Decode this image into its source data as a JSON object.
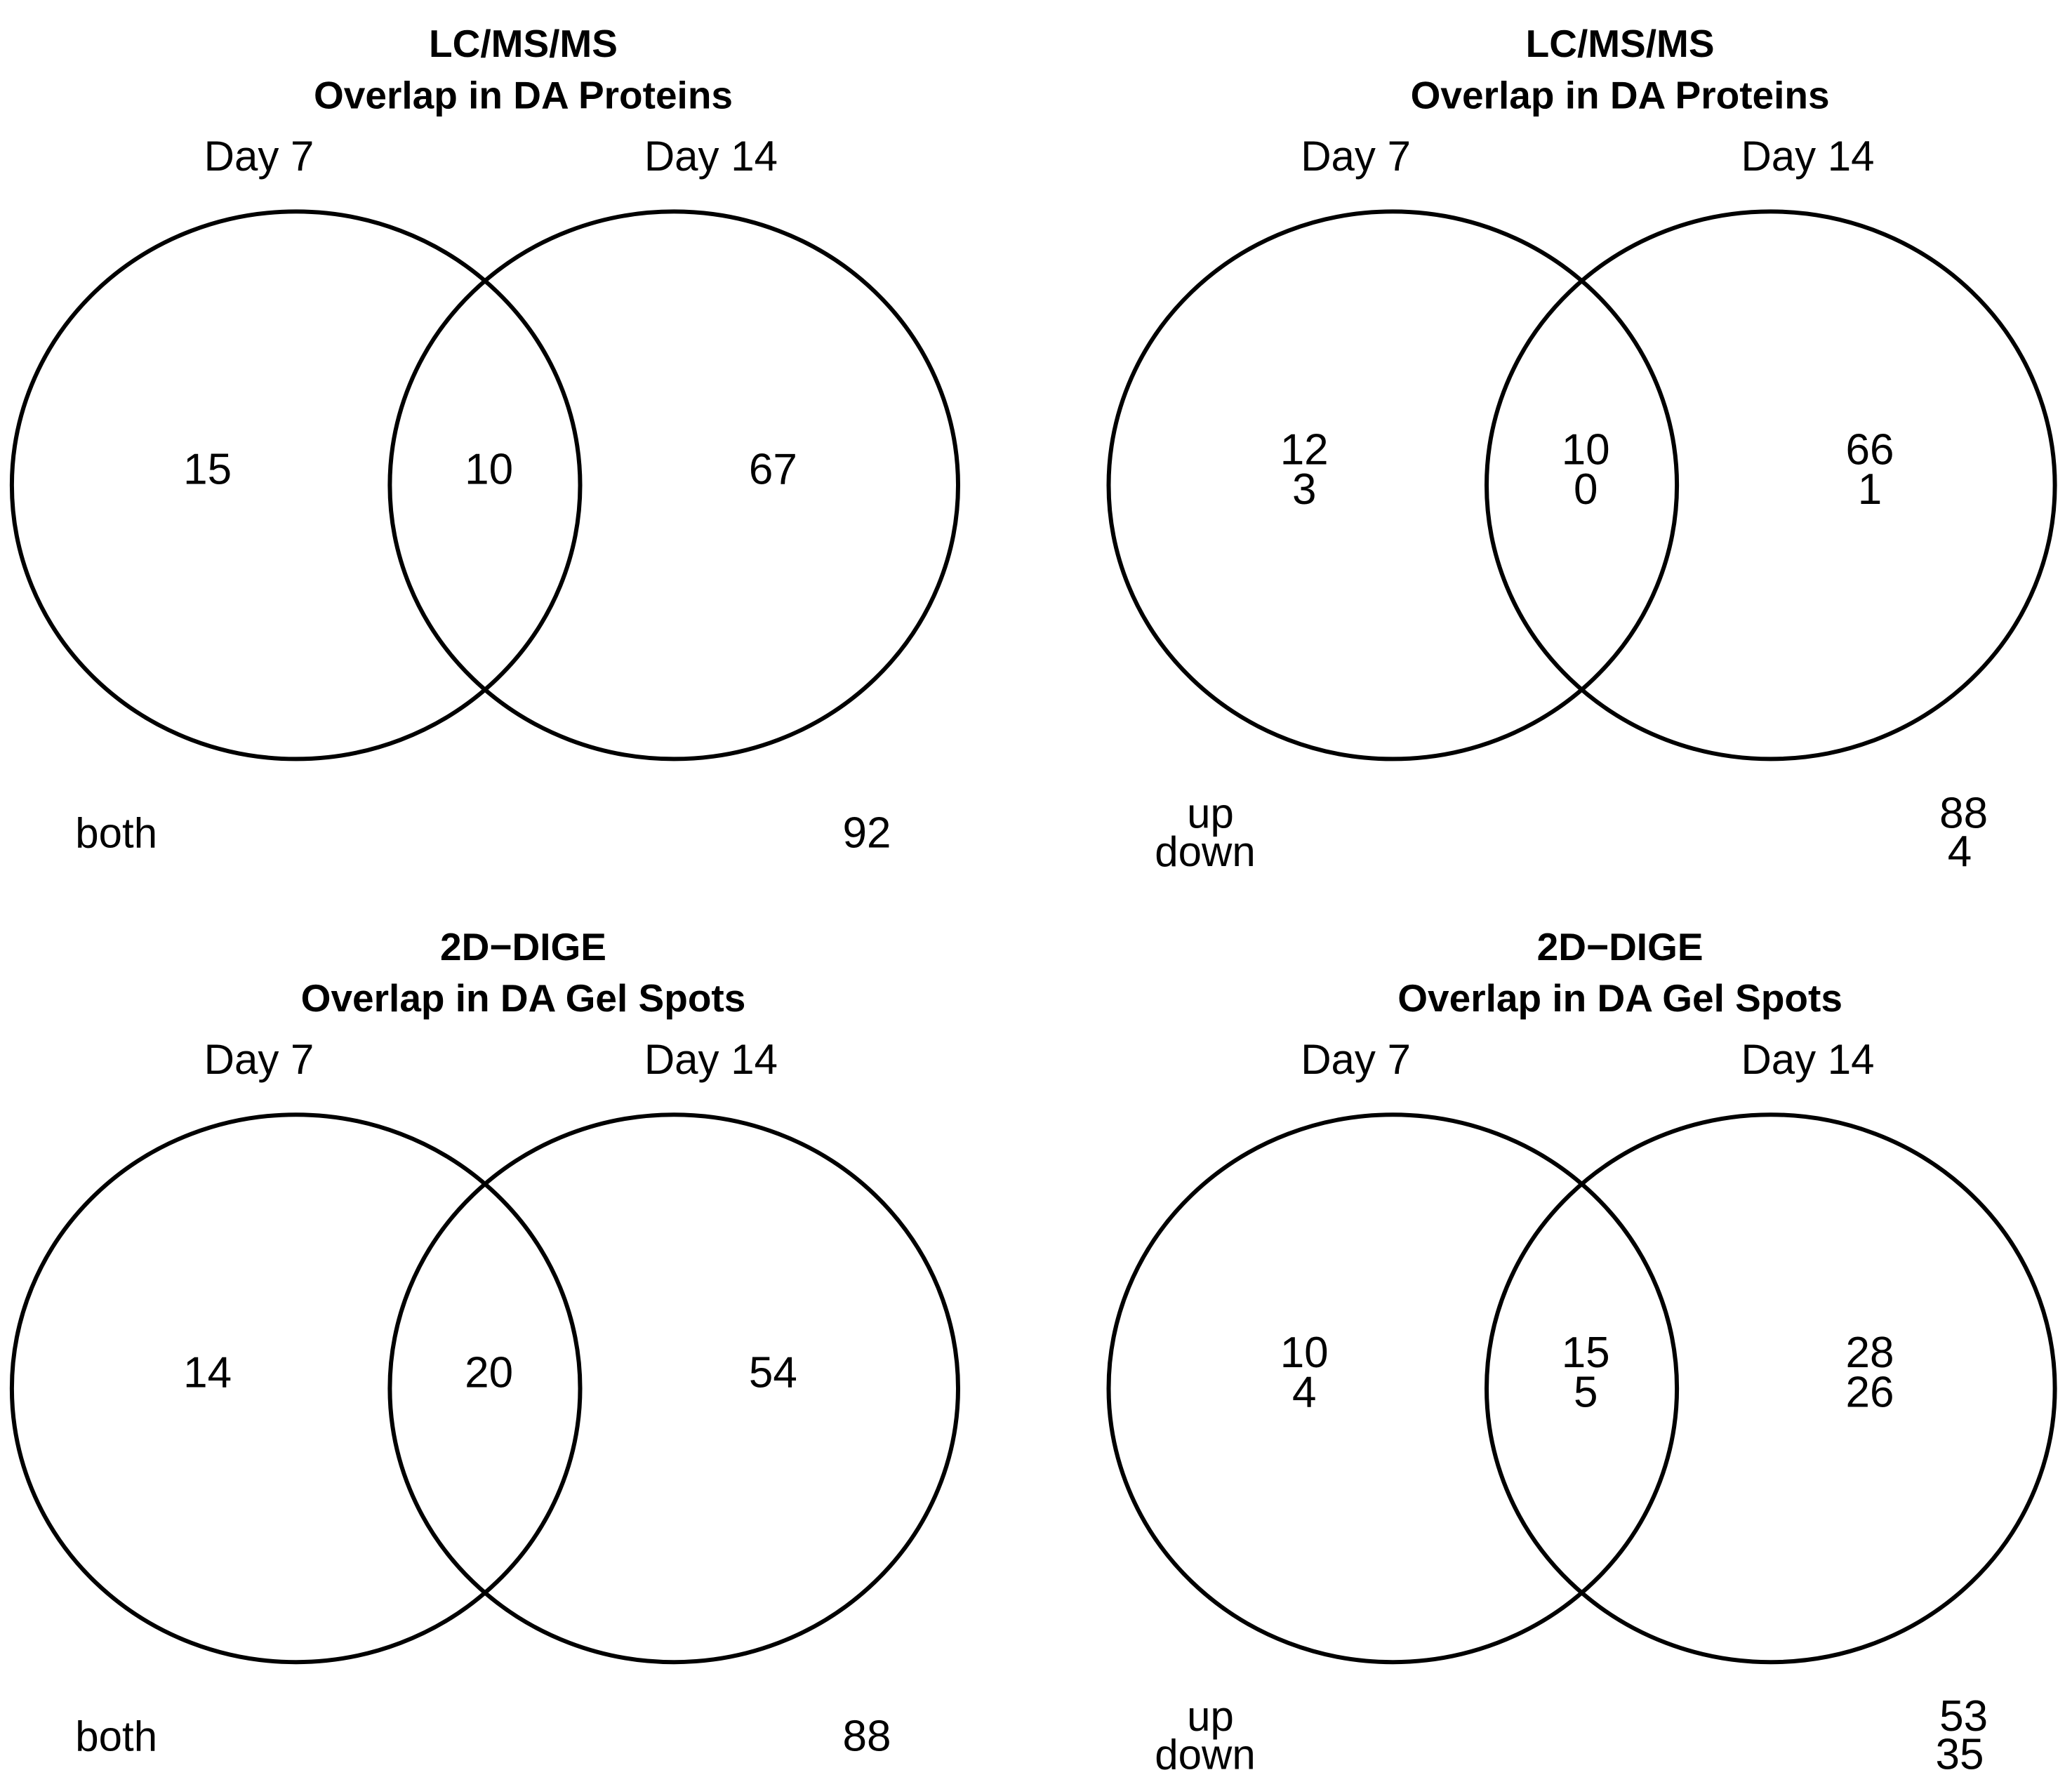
{
  "colors": {
    "up": "#F8333B",
    "down": "#1E9FF2",
    "neutral": "#000000"
  },
  "panels": [
    {
      "title_line1": "LC/MS/MS",
      "title_line2": "Overlap in DA Proteins",
      "set_a": "Day 7",
      "set_b": "Day 14",
      "mode": "both",
      "counts": {
        "a_only": "15",
        "ab": "10",
        "b_only": "67"
      },
      "total_label": "both",
      "total": "92"
    },
    {
      "title_line1": "LC/MS/MS",
      "title_line2": "Overlap in DA Proteins",
      "set_a": "Day 7",
      "set_b": "Day 14",
      "mode": "updown",
      "counts": {
        "a_only": {
          "up": "12",
          "down": "3"
        },
        "ab": {
          "up": "10",
          "down": "0"
        },
        "b_only": {
          "up": "66",
          "down": "1"
        }
      },
      "total_label_up": "up",
      "total_label_down": "down",
      "total_up": "88",
      "total_down": "4"
    },
    {
      "title_line1": "2D−DIGE",
      "title_line2": "Overlap in DA Gel Spots",
      "set_a": "Day 7",
      "set_b": "Day 14",
      "mode": "both",
      "counts": {
        "a_only": "14",
        "ab": "20",
        "b_only": "54"
      },
      "total_label": "both",
      "total": "88"
    },
    {
      "title_line1": "2D−DIGE",
      "title_line2": "Overlap in DA Gel Spots",
      "set_a": "Day 7",
      "set_b": "Day 14",
      "mode": "updown",
      "counts": {
        "a_only": {
          "up": "10",
          "down": "4"
        },
        "ab": {
          "up": "15",
          "down": "5"
        },
        "b_only": {
          "up": "28",
          "down": "26"
        }
      },
      "total_label_up": "up",
      "total_label_down": "down",
      "total_up": "53",
      "total_down": "35"
    }
  ]
}
